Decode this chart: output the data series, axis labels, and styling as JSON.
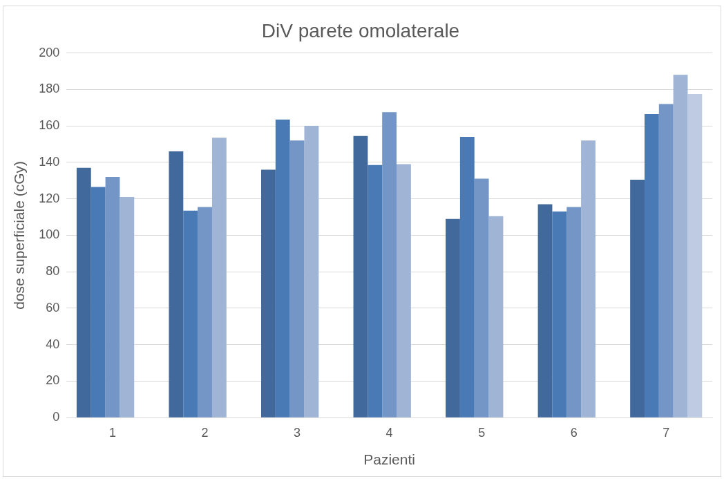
{
  "chart_data": {
    "type": "bar",
    "title": "DiV parete omolaterale",
    "xlabel": "Pazienti",
    "ylabel": "dose superficiale (cGy)",
    "categories": [
      "1",
      "2",
      "3",
      "4",
      "5",
      "6",
      "7"
    ],
    "series": [
      {
        "color": "#41699b",
        "values": [
          137,
          146,
          136,
          154.5,
          109,
          117,
          130.5
        ]
      },
      {
        "color": "#4a7ab5",
        "values": [
          126.5,
          113.5,
          163.5,
          138.5,
          154,
          113,
          166.5
        ]
      },
      {
        "color": "#7396c6",
        "values": [
          132,
          115.5,
          152,
          167.5,
          131,
          115.5,
          172
        ]
      },
      {
        "color": "#a0b4d6",
        "values": [
          121,
          153.5,
          160,
          139,
          110.5,
          152,
          188
        ]
      },
      {
        "color": "#bfcbe2",
        "values": [
          null,
          null,
          null,
          null,
          null,
          null,
          177.5
        ]
      }
    ],
    "ylim": [
      0,
      200
    ],
    "yticks": [
      0,
      20,
      40,
      60,
      80,
      100,
      120,
      140,
      160,
      180,
      200
    ],
    "grid": "y",
    "legend": false
  }
}
